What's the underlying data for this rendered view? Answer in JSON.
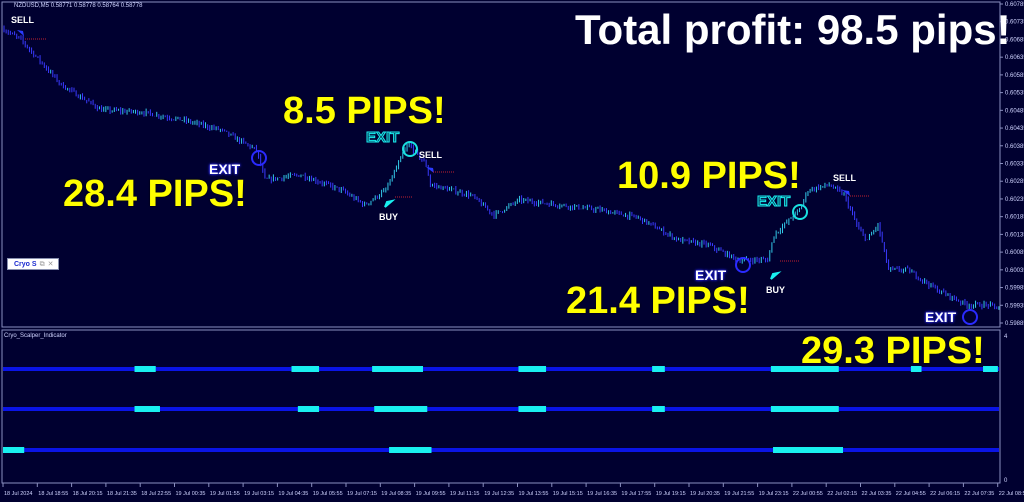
{
  "header": {
    "symbol": "NZDUSD,M5",
    "ohlc": "0.58771 0.58778 0.58764 0.58778"
  },
  "indicator_label": "Cryo_Scalper_Indicator",
  "panel_button": {
    "label": "Cryo S",
    "icons": [
      "restore-icon",
      "close-icon"
    ]
  },
  "annotations": {
    "total": "Total profit: 98.5 pips!",
    "pips": [
      "8.5 PIPS!",
      "28.4 PIPS!",
      "10.9 PIPS!",
      "21.4 PIPS!",
      "29.3 PIPS!"
    ],
    "sell": "SELL",
    "buy": "BUY",
    "exit": "EXIT"
  },
  "colors": {
    "background": "#000030",
    "bull": "#33c8e8",
    "bear": "#3a3aff",
    "indicator_line": "#0a14e6",
    "indicator_active": "#19f0f0",
    "annotation": "#ffff00"
  },
  "indicator_axis": {
    "top": "4",
    "bottom": "0"
  },
  "chart_data": {
    "type": "candlestick",
    "timeframe": "M5",
    "price_ticks": [
      "0.60785",
      "0.60735",
      "0.60685",
      "0.60635",
      "0.60585",
      "0.60535",
      "0.60485",
      "0.60435",
      "0.60385",
      "0.60335",
      "0.60285",
      "0.60235",
      "0.60185",
      "0.60135",
      "0.60085",
      "0.60035",
      "0.59985",
      "0.59935",
      "0.59885"
    ],
    "ylim": [
      0.5987,
      0.60796
    ],
    "time_ticks": [
      "18 Jul 2024",
      "18 Jul 18:55",
      "18 Jul 20:15",
      "18 Jul 21:35",
      "18 Jul 22:55",
      "19 Jul 00:35",
      "19 Jul 01:55",
      "19 Jul 03:15",
      "19 Jul 04:35",
      "19 Jul 05:55",
      "19 Jul 07:15",
      "19 Jul 08:35",
      "19 Jul 09:55",
      "19 Jul 11:15",
      "19 Jul 12:35",
      "19 Jul 13:55",
      "19 Jul 15:15",
      "19 Jul 16:35",
      "19 Jul 17:55",
      "19 Jul 19:15",
      "19 Jul 20:35",
      "19 Jul 21:55",
      "19 Jul 23:15",
      "22 Jul 00:55",
      "22 Jul 02:15",
      "22 Jul 03:35",
      "22 Jul 04:55",
      "22 Jul 06:15",
      "22 Jul 07:35",
      "22 Jul 08:55"
    ],
    "price_path": [
      [
        0,
        0.60717
      ],
      [
        9,
        0.60684
      ],
      [
        28,
        0.60557
      ],
      [
        47,
        0.60486
      ],
      [
        66,
        0.6048
      ],
      [
        85,
        0.60458
      ],
      [
        103,
        0.6043
      ],
      [
        120,
        0.60373
      ],
      [
        124,
        0.60289
      ],
      [
        141,
        0.60303
      ],
      [
        160,
        0.6026
      ],
      [
        171,
        0.60218
      ],
      [
        181,
        0.6026
      ],
      [
        190,
        0.60373
      ],
      [
        192,
        0.60387
      ],
      [
        200,
        0.60331
      ],
      [
        202,
        0.60275
      ],
      [
        221,
        0.60246
      ],
      [
        232,
        0.6019
      ],
      [
        244,
        0.60232
      ],
      [
        263,
        0.60218
      ],
      [
        282,
        0.60204
      ],
      [
        300,
        0.60182
      ],
      [
        319,
        0.60119
      ],
      [
        333,
        0.60105
      ],
      [
        347,
        0.60063
      ],
      [
        361,
        0.60063
      ],
      [
        364,
        0.60134
      ],
      [
        376,
        0.60204
      ],
      [
        380,
        0.6026
      ],
      [
        390,
        0.60275
      ],
      [
        397,
        0.60246
      ],
      [
        404,
        0.60148
      ],
      [
        408,
        0.60119
      ],
      [
        413,
        0.60162
      ],
      [
        418,
        0.60035
      ],
      [
        427,
        0.60035
      ],
      [
        441,
        0.59978
      ],
      [
        455,
        0.59936
      ],
      [
        465,
        0.59936
      ],
      [
        469,
        0.59928
      ]
    ],
    "indicator_segments": [
      [
        [
          62,
          72
        ],
        [
          136,
          149
        ],
        [
          174,
          198
        ],
        [
          243,
          256
        ],
        [
          306,
          312
        ],
        [
          362,
          394
        ],
        [
          428,
          433
        ],
        [
          462,
          469
        ]
      ],
      [
        [
          62,
          74
        ],
        [
          139,
          149
        ],
        [
          175,
          200
        ],
        [
          243,
          256
        ],
        [
          306,
          312
        ],
        [
          362,
          394
        ]
      ],
      [
        [
          0,
          10
        ],
        [
          182,
          202
        ],
        [
          363,
          396
        ]
      ]
    ],
    "indicator_bars": 470
  }
}
